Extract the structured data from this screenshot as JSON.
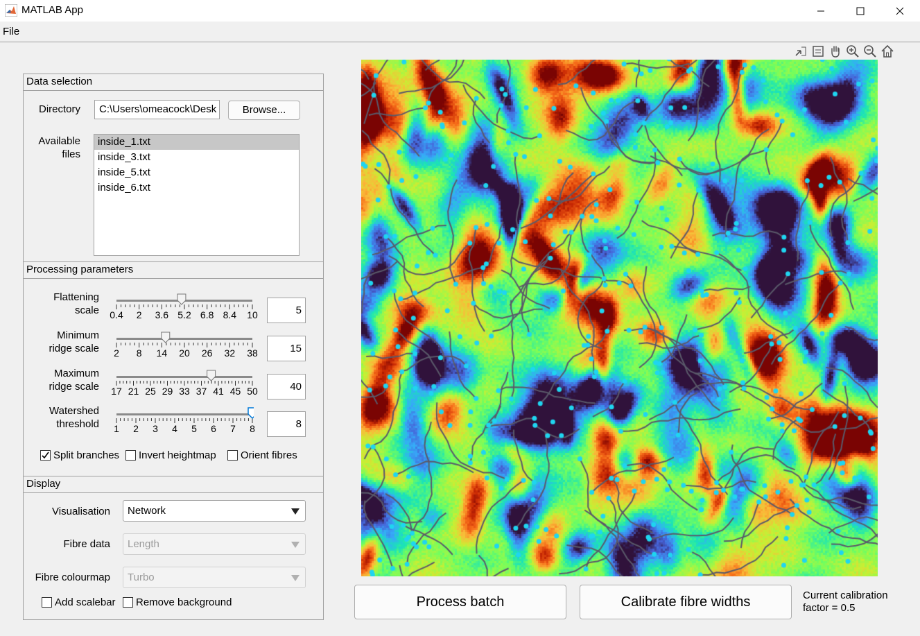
{
  "window": {
    "title": "MATLAB App"
  },
  "menu": {
    "file": "File"
  },
  "data_selection": {
    "title": "Data selection",
    "directory_label": "Directory",
    "directory_value": "C:\\Users\\omeacock\\Desk",
    "browse_label": "Browse...",
    "files_label_1": "Available",
    "files_label_2": "files",
    "files": [
      "inside_1.txt",
      "inside_3.txt",
      "inside_5.txt",
      "inside_6.txt"
    ],
    "selected_file": "inside_1.txt"
  },
  "processing": {
    "title": "Processing parameters",
    "sliders": [
      {
        "label_1": "Flattening",
        "label_2": "scale",
        "value": "5",
        "min": 0.4,
        "max": 10,
        "position": 5,
        "ticks": [
          "0.4",
          "2",
          "3.6",
          "5.2",
          "6.8",
          "8.4",
          "10"
        ]
      },
      {
        "label_1": "Minimum",
        "label_2": "ridge scale",
        "value": "15",
        "min": 2,
        "max": 38,
        "position": 15,
        "ticks": [
          "2",
          "8",
          "14",
          "20",
          "26",
          "32",
          "38"
        ]
      },
      {
        "label_1": "Maximum",
        "label_2": "ridge scale",
        "value": "40",
        "min": 17,
        "max": 50,
        "position": 40,
        "ticks": [
          "17",
          "21",
          "25",
          "29",
          "33",
          "37",
          "41",
          "45",
          "50"
        ]
      },
      {
        "label_1": "Watershed",
        "label_2": "threshold",
        "value": "8",
        "min": 1,
        "max": 8,
        "position": 8,
        "ticks": [
          "1",
          "2",
          "3",
          "4",
          "5",
          "6",
          "7",
          "8"
        ]
      }
    ],
    "split_branches": {
      "label": "Split branches",
      "checked": true
    },
    "invert_heightmap": {
      "label": "Invert heightmap",
      "checked": false
    },
    "orient_fibres": {
      "label": "Orient fibres",
      "checked": false
    }
  },
  "display": {
    "title": "Display",
    "visualisation_label": "Visualisation",
    "visualisation_value": "Network",
    "fibre_data_label": "Fibre data",
    "fibre_data_value": "Length",
    "colourmap_label": "Fibre colourmap",
    "colourmap_value": "Turbo",
    "add_scalebar": {
      "label": "Add scalebar",
      "checked": false
    },
    "remove_background": {
      "label": "Remove background",
      "checked": false
    }
  },
  "actions": {
    "process_batch": "Process batch",
    "calibrate": "Calibrate fibre widths",
    "calibration_line_1": "Current calibration",
    "calibration_line_2": "factor = 0.5"
  },
  "colors": {
    "selected_item": "#c7c7c7",
    "slider_thumb_active": "#0078d7",
    "image_palette": [
      "#30123b",
      "#4662d7",
      "#36aaf9",
      "#1ae4b6",
      "#72fe5e",
      "#c8ef34",
      "#faba39",
      "#f66b19",
      "#ca2a04",
      "#7a0403"
    ],
    "network_line": "#5a5a6a",
    "network_node": "#1fd5f0"
  }
}
